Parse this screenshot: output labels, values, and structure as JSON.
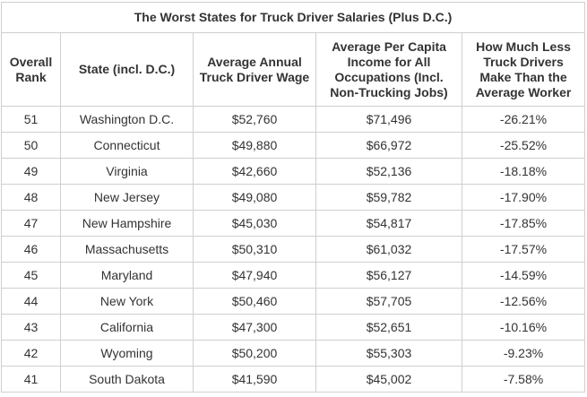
{
  "table": {
    "title": "The Worst States for Truck Driver Salaries (Plus D.C.)",
    "headers": [
      "Overall Rank",
      "State (incl. D.C.)",
      "Average Annual Truck Driver Wage",
      "Average Per Capita Income for All Occupations (Incl. Non-Trucking Jobs)",
      "How Much Less Truck Drivers Make Than the Average Worker"
    ],
    "rows": [
      [
        "51",
        "Washington D.C.",
        "$52,760",
        "$71,496",
        "-26.21%"
      ],
      [
        "50",
        "Connecticut",
        "$49,880",
        "$66,972",
        "-25.52%"
      ],
      [
        "49",
        "Virginia",
        "$42,660",
        "$52,136",
        "-18.18%"
      ],
      [
        "48",
        "New Jersey",
        "$49,080",
        "$59,782",
        "-17.90%"
      ],
      [
        "47",
        "New Hampshire",
        "$45,030",
        "$54,817",
        "-17.85%"
      ],
      [
        "46",
        "Massachusetts",
        "$50,310",
        "$61,032",
        "-17.57%"
      ],
      [
        "45",
        "Maryland",
        "$47,940",
        "$56,127",
        "-14.59%"
      ],
      [
        "44",
        "New York",
        "$50,460",
        "$57,705",
        "-12.56%"
      ],
      [
        "43",
        "California",
        "$47,300",
        "$52,651",
        "-10.16%"
      ],
      [
        "42",
        "Wyoming",
        "$50,200",
        "$55,303",
        "-9.23%"
      ],
      [
        "41",
        "South Dakota",
        "$41,590",
        "$45,002",
        "-7.58%"
      ]
    ]
  }
}
